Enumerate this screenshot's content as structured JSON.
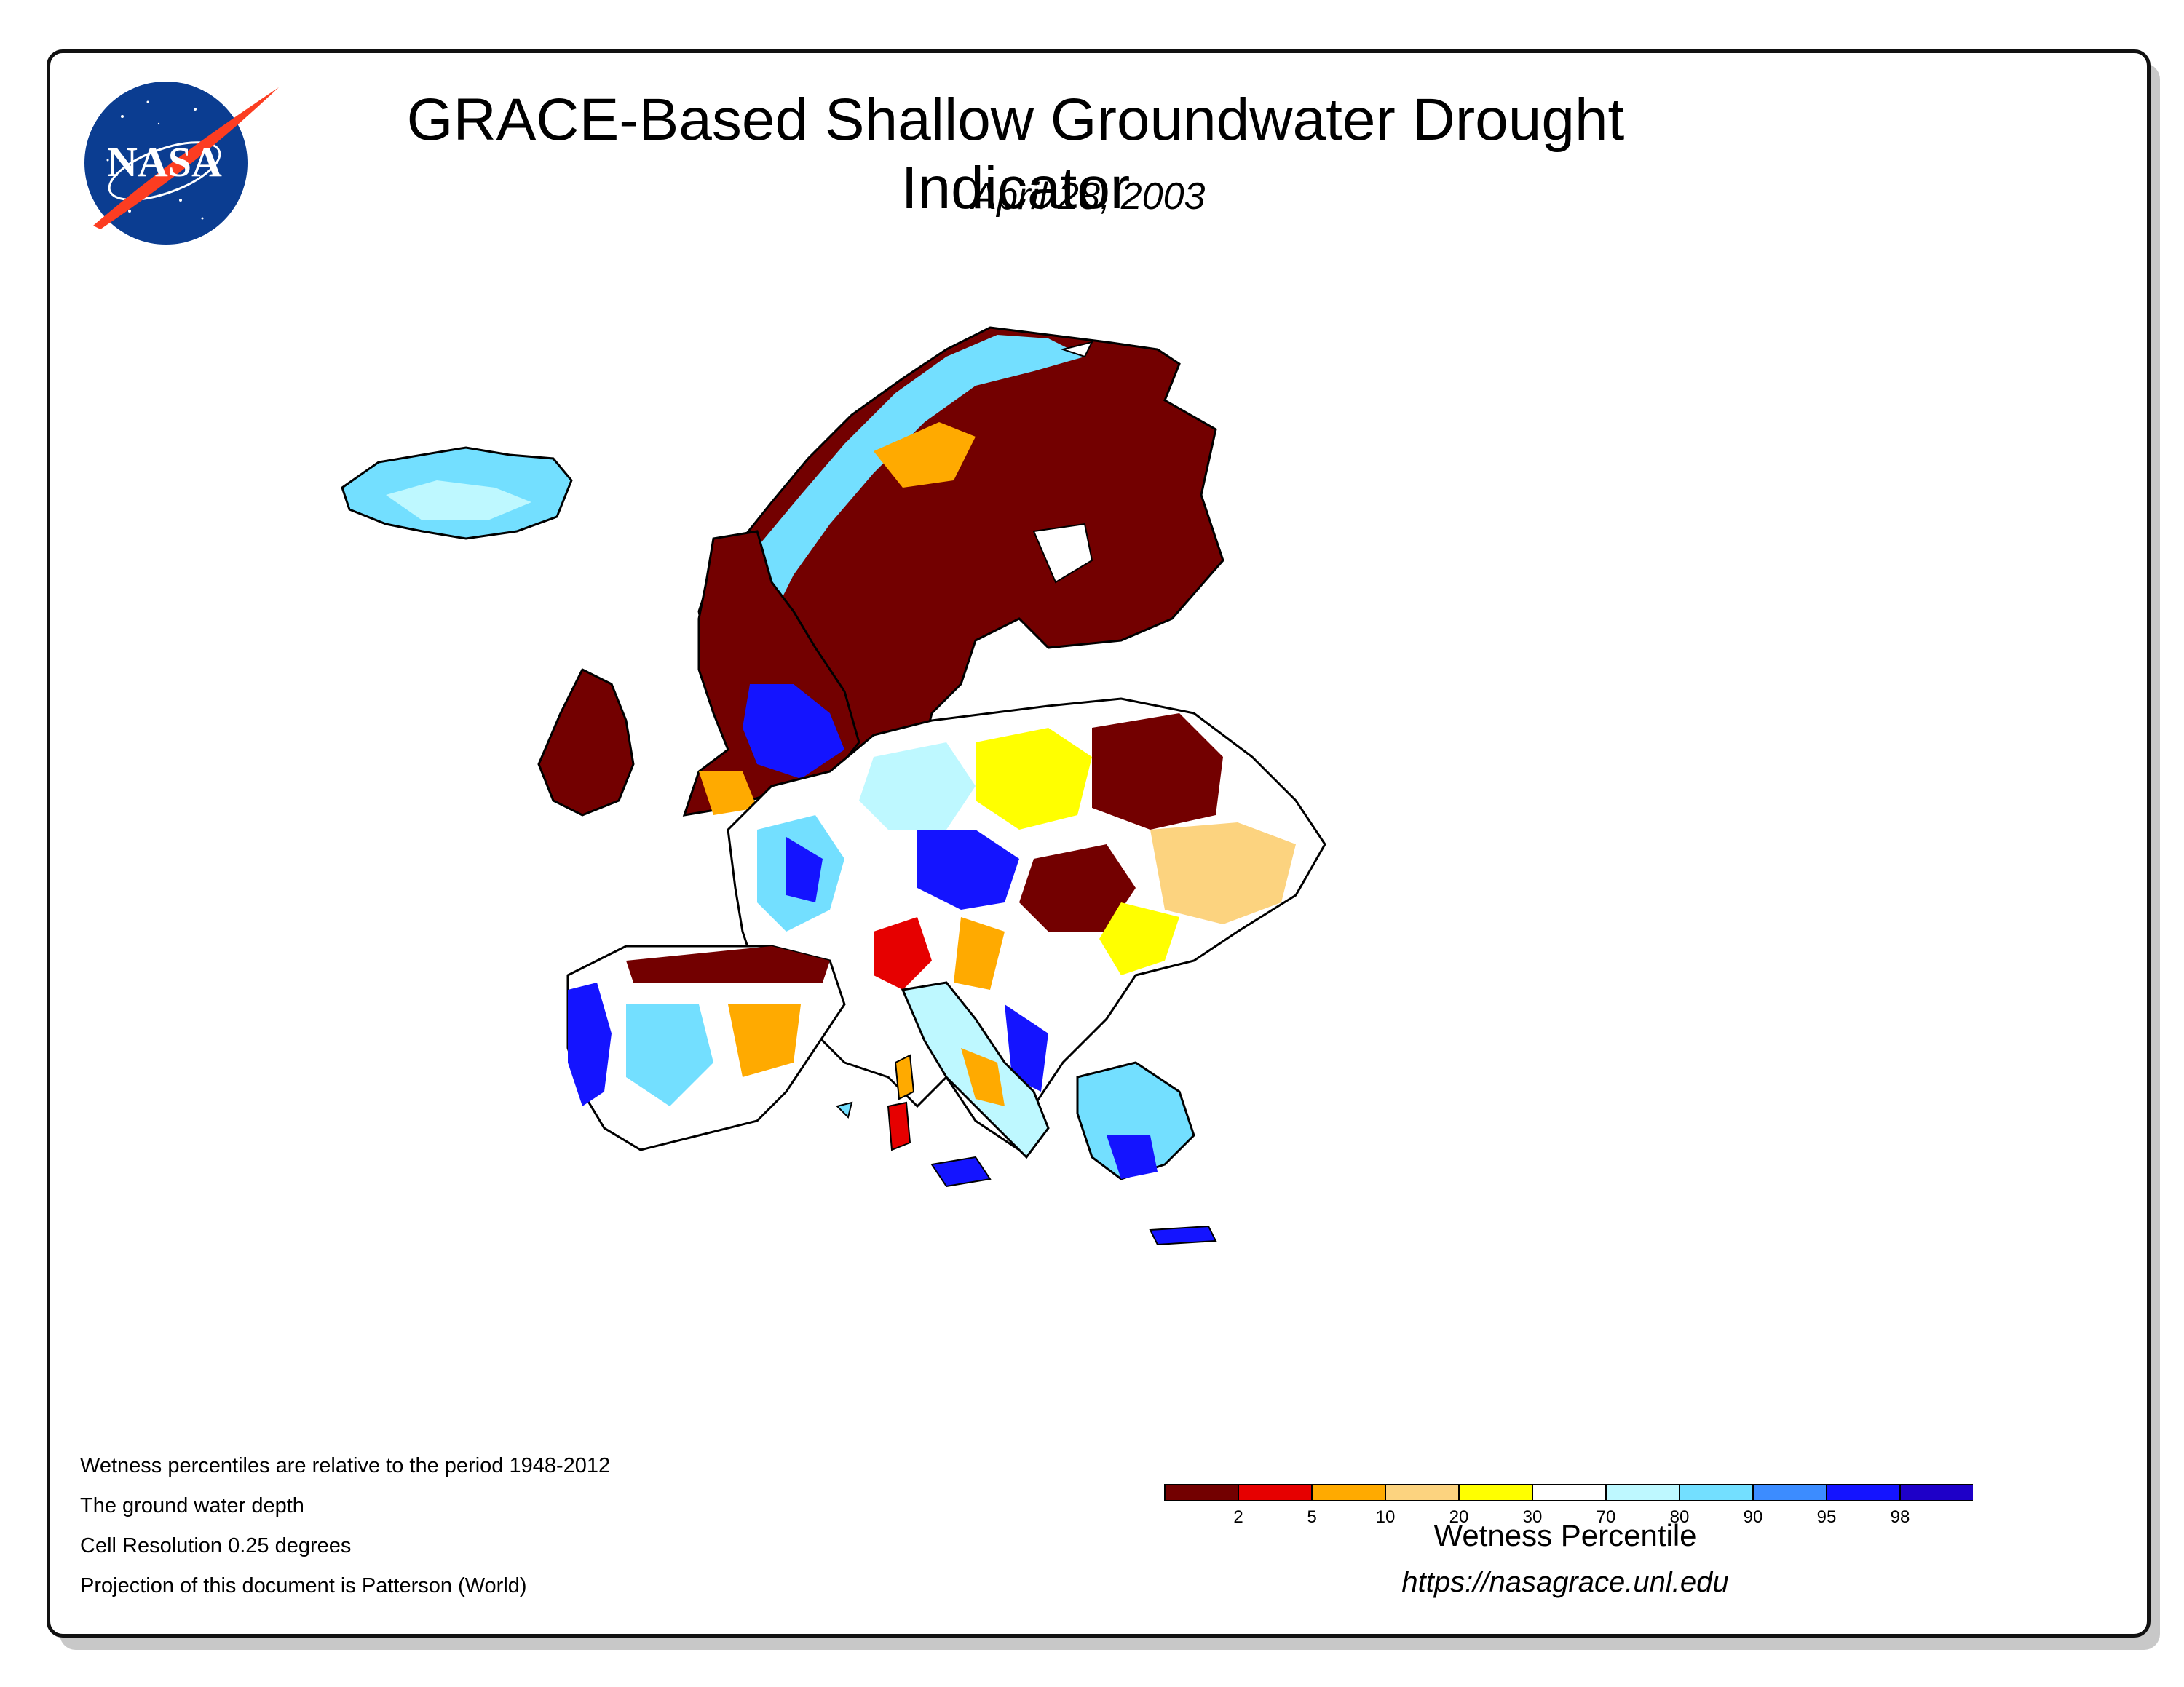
{
  "header": {
    "title": "GRACE-Based Shallow Groundwater Drought Indicator",
    "date": "April 28, 2003",
    "logo_text": "NASA"
  },
  "notes": [
    "Wetness percentiles are relative to the period 1948-2012",
    "The ground water depth",
    "Cell Resolution 0.25 degrees",
    "Projection of this document is Patterson (World)"
  ],
  "legend": {
    "title": "Wetness Percentile",
    "ticks": [
      "2",
      "5",
      "10",
      "20",
      "30",
      "70",
      "80",
      "90",
      "95",
      "98"
    ],
    "colors": [
      "#730000",
      "#e60000",
      "#ffaa00",
      "#fcd37f",
      "#ffff00",
      "#ffffff",
      "#bef8ff",
      "#73dfff",
      "#3c8cff",
      "#1414ff",
      "#1e00c8"
    ]
  },
  "source_url": "https://nasagrace.unl.edu",
  "map_colors": {
    "dry_extreme": "#730000",
    "dry_severe": "#e60000",
    "dry_moderate": "#ffaa00",
    "dry_abnormal": "#fcd37f",
    "dry_slight": "#ffff00",
    "normal": "#ffffff",
    "wet_slight": "#bef8ff",
    "wet_moderate": "#73dfff",
    "wet_high": "#3c8cff",
    "wet_very_high": "#1414ff",
    "wet_extreme": "#1e00c8",
    "border": "#000000"
  }
}
